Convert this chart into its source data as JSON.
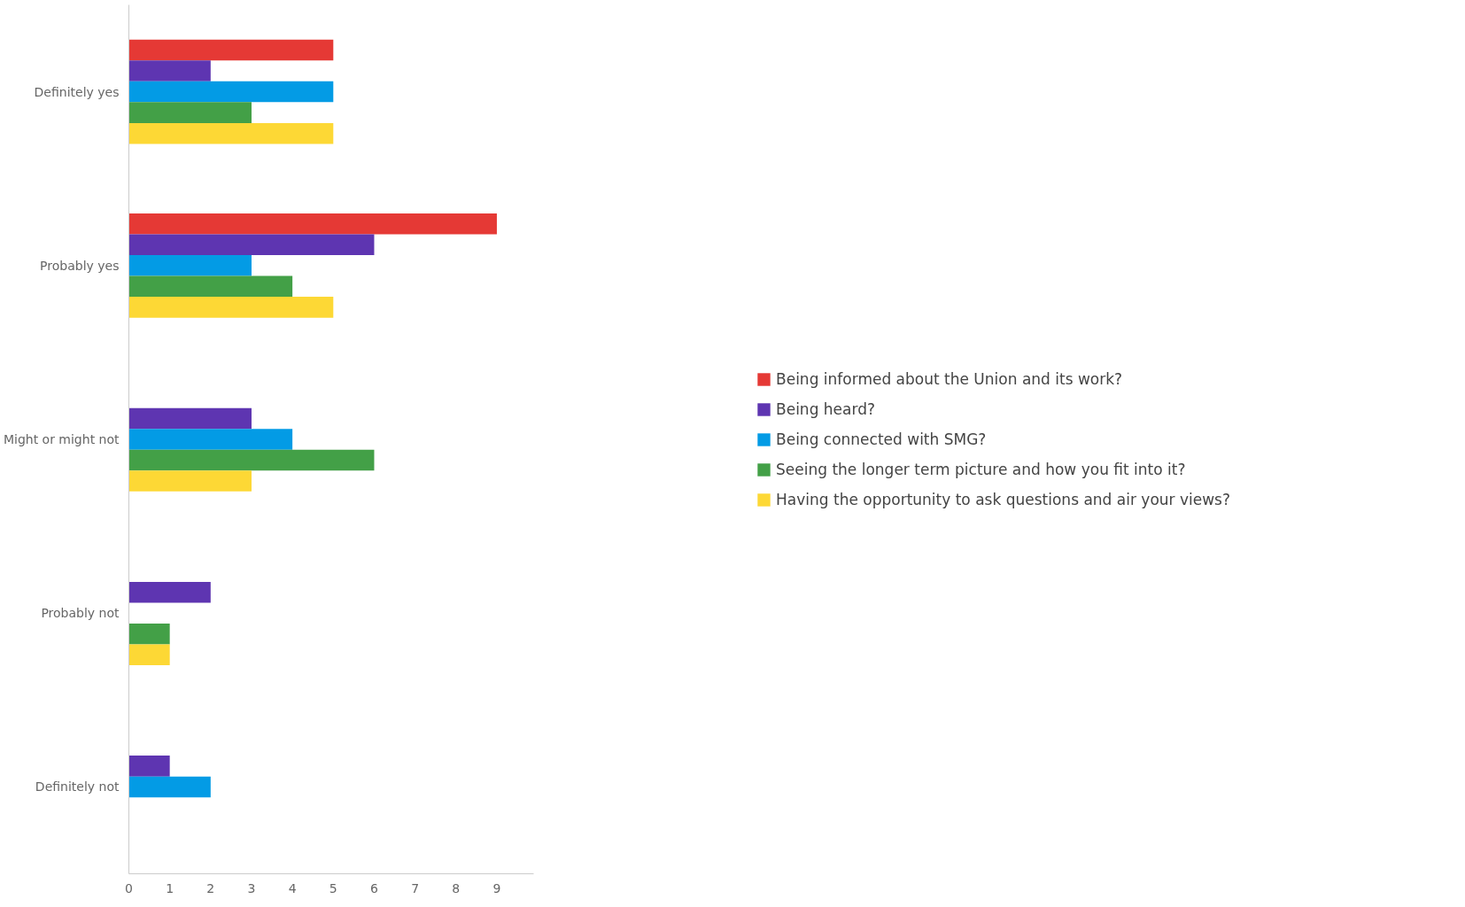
{
  "chart_data": {
    "type": "bar",
    "orientation": "horizontal",
    "categories": [
      "Definitely yes",
      "Probably yes",
      "Might or might not",
      "Probably not",
      "Definitely not"
    ],
    "series": [
      {
        "name": "Being informed about the Union and its work?",
        "color": "#e53935",
        "values": [
          5,
          9,
          0,
          0,
          0
        ]
      },
      {
        "name": "Being heard?",
        "color": "#5e35b1",
        "values": [
          2,
          6,
          3,
          2,
          1
        ]
      },
      {
        "name": "Being connected with SMG?",
        "color": "#039be5",
        "values": [
          5,
          3,
          4,
          0,
          2
        ]
      },
      {
        "name": "Seeing the longer term picture and how you fit into it?",
        "color": "#43a047",
        "values": [
          3,
          4,
          6,
          1,
          0
        ]
      },
      {
        "name": "Having the opportunity to ask questions and air your views?",
        "color": "#fdd835",
        "values": [
          5,
          5,
          3,
          1,
          0
        ]
      }
    ],
    "xlim": [
      0,
      9.9
    ],
    "xticks": [
      0,
      1,
      2,
      3,
      4,
      5,
      6,
      7,
      8,
      9
    ],
    "grid": false,
    "legend": "right"
  }
}
